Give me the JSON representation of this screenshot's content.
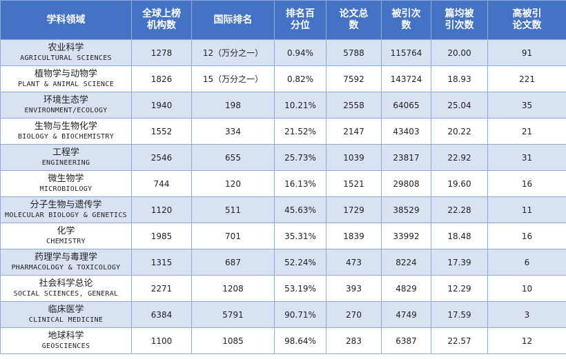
{
  "header": [
    "学科领域",
    "全球上榜\n机构数",
    "国际排名",
    "排名百\n分位",
    "论文总\n数",
    "被引次\n数",
    "篇均被\n引次数",
    "高被引\n论文数"
  ],
  "rows": [
    {
      "cn": "农业科学",
      "en": "AGRICULTURAL SCIENCES",
      "institutions": "1278",
      "rank": "12（万分之一）",
      "percentile": "0.94%",
      "papers": "5788",
      "citations": "115764",
      "avg_citations": "20.00",
      "highly_cited": "91"
    },
    {
      "cn": "植物学与动物学",
      "en": "PLANT & ANIMAL SCIENCE",
      "institutions": "1826",
      "rank": "15（万分之一）",
      "percentile": "0.82%",
      "papers": "7592",
      "citations": "143724",
      "avg_citations": "18.93",
      "highly_cited": "221"
    },
    {
      "cn": "环境生态学",
      "en": "ENVIRONMENT/ECOLOGY",
      "institutions": "1940",
      "rank": "198",
      "percentile": "10.21%",
      "papers": "2558",
      "citations": "64065",
      "avg_citations": "25.04",
      "highly_cited": "35"
    },
    {
      "cn": "生物与生物化学",
      "en": "BIOLOGY & BIOCHEMISTRY",
      "institutions": "1552",
      "rank": "334",
      "percentile": "21.52%",
      "papers": "2147",
      "citations": "43403",
      "avg_citations": "20.22",
      "highly_cited": "21"
    },
    {
      "cn": "工程学",
      "en": "ENGINEERING",
      "institutions": "2546",
      "rank": "655",
      "percentile": "25.73%",
      "papers": "1039",
      "citations": "23817",
      "avg_citations": "22.92",
      "highly_cited": "31"
    },
    {
      "cn": "微生物学",
      "en": "MICROBIOLOGY",
      "institutions": "744",
      "rank": "120",
      "percentile": "16.13%",
      "papers": "1521",
      "citations": "29808",
      "avg_citations": "19.60",
      "highly_cited": "16"
    },
    {
      "cn": "分子生物与遗传学",
      "en": "MOLECULAR BIOLOGY & GENETICS",
      "institutions": "1120",
      "rank": "511",
      "percentile": "45.63%",
      "papers": "1729",
      "citations": "38529",
      "avg_citations": "22.28",
      "highly_cited": "11"
    },
    {
      "cn": "化学",
      "en": "CHEMISTRY",
      "institutions": "1985",
      "rank": "701",
      "percentile": "35.31%",
      "papers": "1839",
      "citations": "33992",
      "avg_citations": "18.48",
      "highly_cited": "16"
    },
    {
      "cn": "药理学与毒理学",
      "en": "PHARMACOLOGY & TOXICOLOGY",
      "institutions": "1315",
      "rank": "687",
      "percentile": "52.24%",
      "papers": "473",
      "citations": "8224",
      "avg_citations": "17.39",
      "highly_cited": "6"
    },
    {
      "cn": "社会科学总论",
      "en": "SOCIAL SCIENCES, GENERAL",
      "institutions": "2271",
      "rank": "1208",
      "percentile": "53.19%",
      "papers": "393",
      "citations": "4829",
      "avg_citations": "12.29",
      "highly_cited": "10"
    },
    {
      "cn": "临床医学",
      "en": "CLINICAL MEDICINE",
      "institutions": "6384",
      "rank": "5791",
      "percentile": "90.71%",
      "papers": "270",
      "citations": "4749",
      "avg_citations": "17.59",
      "highly_cited": "3"
    },
    {
      "cn": "地球科学",
      "en": "GEOSCIENCES",
      "institutions": "1100",
      "rank": "1085",
      "percentile": "98.64%",
      "papers": "283",
      "citations": "6387",
      "avg_citations": "22.57",
      "highly_cited": "12"
    }
  ],
  "colors": {
    "header_bg": "#4472c4",
    "header_text": "#ffffff",
    "band_row": "#d9e2f3",
    "plain_row": "#ffffff",
    "border": "#8eaadb"
  }
}
